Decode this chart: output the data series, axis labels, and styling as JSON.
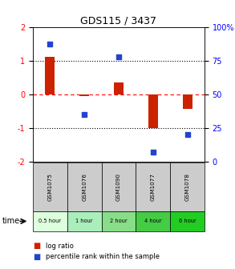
{
  "title": "GDS115 / 3437",
  "samples": [
    "GSM1075",
    "GSM1076",
    "GSM1090",
    "GSM1077",
    "GSM1078"
  ],
  "time_labels": [
    "0.5 hour",
    "1 hour",
    "2 hour",
    "4 hour",
    "6 hour"
  ],
  "time_colors": [
    "#ddffdd",
    "#aaeebb",
    "#88dd88",
    "#44cc44",
    "#22cc22"
  ],
  "log_ratio": [
    1.1,
    -0.05,
    0.35,
    -1.02,
    -0.45
  ],
  "percentile": [
    87,
    35,
    78,
    7,
    20
  ],
  "bar_color": "#cc2200",
  "dot_color": "#2244cc",
  "ylim_left": [
    -2,
    2
  ],
  "ylim_right": [
    0,
    100
  ],
  "yticks_left": [
    -2,
    -1,
    0,
    1,
    2
  ],
  "yticks_right": [
    0,
    25,
    50,
    75,
    100
  ],
  "ytick_labels_right": [
    "0",
    "25",
    "50",
    "75",
    "100%"
  ]
}
